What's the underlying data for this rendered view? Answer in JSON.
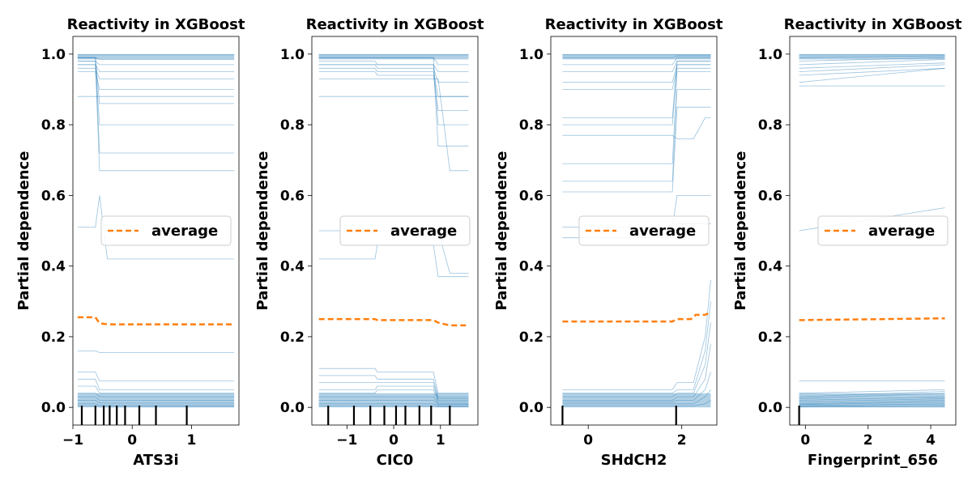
{
  "chart_data": [
    {
      "type": "line",
      "title": "Reactivity in XGBoost",
      "xlabel": "ATS3i",
      "ylabel": "Partial dependence",
      "xlim": [
        -1.0,
        1.8
      ],
      "ylim": [
        -0.05,
        1.05
      ],
      "xticks": [
        -1,
        0,
        1
      ],
      "xtick_labels": [
        "−1",
        "0",
        "1"
      ],
      "yticks": [
        0.0,
        0.2,
        0.4,
        0.6,
        0.8,
        1.0
      ],
      "ytick_labels": [
        "0.0",
        "0.2",
        "0.4",
        "0.6",
        "0.8",
        "1.0"
      ],
      "legend": {
        "label": "average",
        "position": "center-right"
      },
      "ice_x": [
        -0.92,
        -0.62,
        -0.55,
        -0.42,
        -0.3,
        -0.15,
        0.1,
        0.4,
        0.92,
        1.72
      ],
      "ice_lines": [
        [
          0.998,
          0.998,
          0.998,
          0.998,
          0.998,
          0.998,
          0.998,
          0.998,
          0.998,
          0.998
        ],
        [
          0.99,
          0.99,
          0.985,
          0.985,
          0.985,
          0.985,
          0.985,
          0.985,
          0.985,
          0.985
        ],
        [
          0.98,
          0.98,
          0.97,
          0.97,
          0.97,
          0.97,
          0.97,
          0.97,
          0.97,
          0.97
        ],
        [
          0.97,
          0.97,
          0.95,
          0.95,
          0.95,
          0.95,
          0.95,
          0.95,
          0.95,
          0.95
        ],
        [
          0.96,
          0.96,
          0.93,
          0.93,
          0.93,
          0.93,
          0.93,
          0.93,
          0.93,
          0.93
        ],
        [
          0.95,
          0.95,
          0.9,
          0.9,
          0.9,
          0.9,
          0.9,
          0.9,
          0.9,
          0.9
        ],
        [
          0.99,
          0.99,
          0.86,
          0.86,
          0.86,
          0.86,
          0.86,
          0.86,
          0.86,
          0.86
        ],
        [
          0.98,
          0.98,
          0.8,
          0.8,
          0.8,
          0.8,
          0.8,
          0.8,
          0.8,
          0.8
        ],
        [
          0.99,
          0.99,
          0.72,
          0.72,
          0.72,
          0.72,
          0.72,
          0.72,
          0.72,
          0.72
        ],
        [
          0.97,
          0.97,
          0.67,
          0.67,
          0.67,
          0.67,
          0.67,
          0.67,
          0.67,
          0.67
        ],
        [
          0.88,
          0.88,
          0.88,
          0.88,
          0.88,
          0.88,
          0.88,
          0.88,
          0.88,
          0.88
        ],
        [
          0.51,
          0.51,
          0.6,
          0.42,
          0.42,
          0.42,
          0.42,
          0.42,
          0.42,
          0.42
        ],
        [
          0.16,
          0.16,
          0.155,
          0.155,
          0.155,
          0.155,
          0.155,
          0.155,
          0.155,
          0.155
        ],
        [
          0.1,
          0.1,
          0.075,
          0.075,
          0.075,
          0.075,
          0.075,
          0.075,
          0.075,
          0.075
        ],
        [
          0.08,
          0.08,
          0.05,
          0.05,
          0.05,
          0.05,
          0.05,
          0.05,
          0.05,
          0.05
        ],
        [
          0.06,
          0.06,
          0.04,
          0.04,
          0.04,
          0.04,
          0.04,
          0.04,
          0.04,
          0.04
        ],
        [
          0.04,
          0.04,
          0.03,
          0.03,
          0.03,
          0.03,
          0.03,
          0.03,
          0.03,
          0.03
        ],
        [
          0.03,
          0.03,
          0.02,
          0.02,
          0.02,
          0.02,
          0.02,
          0.02,
          0.02,
          0.02
        ],
        [
          0.02,
          0.02,
          0.012,
          0.012,
          0.012,
          0.012,
          0.012,
          0.012,
          0.012,
          0.012
        ],
        [
          0.01,
          0.01,
          0.006,
          0.006,
          0.006,
          0.006,
          0.006,
          0.006,
          0.006,
          0.006
        ],
        [
          0.004,
          0.004,
          0.002,
          0.002,
          0.002,
          0.002,
          0.002,
          0.002,
          0.002,
          0.002
        ]
      ],
      "average": {
        "x": [
          -0.92,
          -0.62,
          -0.55,
          -0.42,
          -0.3,
          0.1,
          0.92,
          1.72
        ],
        "y": [
          0.255,
          0.255,
          0.238,
          0.235,
          0.235,
          0.235,
          0.235,
          0.235
        ]
      },
      "rug": [
        -0.85,
        -0.62,
        -0.48,
        -0.38,
        -0.26,
        -0.12,
        0.12,
        0.4,
        0.92
      ]
    },
    {
      "type": "line",
      "title": "Reactivity in XGBoost",
      "xlabel": "CIC0",
      "ylabel": "Partial dependence",
      "xlim": [
        -1.75,
        1.8
      ],
      "ylim": [
        -0.05,
        1.05
      ],
      "xticks": [
        -1,
        0,
        1
      ],
      "xtick_labels": [
        "−1",
        "0",
        "1"
      ],
      "yticks": [
        0.0,
        0.2,
        0.4,
        0.6,
        0.8,
        1.0
      ],
      "ytick_labels": [
        "0.0",
        "0.2",
        "0.4",
        "0.6",
        "0.8",
        "1.0"
      ],
      "legend": {
        "label": "average",
        "position": "center-right"
      },
      "ice_x": [
        -1.6,
        -0.4,
        -0.35,
        0.2,
        0.85,
        0.95,
        1.2,
        1.6
      ],
      "ice_lines": [
        [
          0.998,
          0.998,
          0.998,
          0.998,
          0.998,
          0.998,
          0.998,
          0.998
        ],
        [
          0.99,
          0.99,
          0.99,
          0.99,
          0.99,
          0.97,
          0.97,
          0.97
        ],
        [
          0.98,
          0.98,
          0.97,
          0.97,
          0.97,
          0.95,
          0.95,
          0.95
        ],
        [
          0.97,
          0.97,
          0.96,
          0.96,
          0.96,
          0.92,
          0.92,
          0.92
        ],
        [
          0.96,
          0.96,
          0.95,
          0.95,
          0.95,
          0.88,
          0.88,
          0.88
        ],
        [
          0.95,
          0.95,
          0.94,
          0.94,
          0.94,
          0.84,
          0.84,
          0.84
        ],
        [
          0.99,
          0.99,
          0.99,
          0.99,
          0.99,
          0.8,
          0.8,
          0.8
        ],
        [
          0.97,
          0.97,
          0.97,
          0.97,
          0.97,
          0.74,
          0.74,
          0.74
        ],
        [
          0.93,
          0.93,
          0.93,
          0.93,
          0.93,
          0.93,
          0.67,
          0.67
        ],
        [
          0.88,
          0.88,
          0.88,
          0.88,
          0.88,
          0.88,
          0.88,
          0.88
        ],
        [
          0.5,
          0.5,
          0.5,
          0.5,
          0.5,
          0.5,
          0.38,
          0.38
        ],
        [
          0.42,
          0.42,
          0.46,
          0.46,
          0.46,
          0.37,
          0.37,
          0.37
        ],
        [
          0.11,
          0.11,
          0.1,
          0.1,
          0.1,
          0.04,
          0.04,
          0.04
        ],
        [
          0.09,
          0.09,
          0.08,
          0.08,
          0.08,
          0.03,
          0.03,
          0.03
        ],
        [
          0.07,
          0.07,
          0.07,
          0.07,
          0.07,
          0.025,
          0.025,
          0.025
        ],
        [
          0.05,
          0.05,
          0.06,
          0.06,
          0.06,
          0.02,
          0.02,
          0.02
        ],
        [
          0.04,
          0.04,
          0.05,
          0.05,
          0.05,
          0.015,
          0.015,
          0.015
        ],
        [
          0.03,
          0.03,
          0.03,
          0.03,
          0.03,
          0.01,
          0.01,
          0.01
        ],
        [
          0.02,
          0.02,
          0.02,
          0.02,
          0.02,
          0.008,
          0.008,
          0.008
        ],
        [
          0.01,
          0.01,
          0.01,
          0.01,
          0.01,
          0.004,
          0.004,
          0.004
        ],
        [
          0.004,
          0.004,
          0.004,
          0.004,
          0.004,
          0.002,
          0.002,
          0.002
        ]
      ],
      "average": {
        "x": [
          -1.6,
          -0.4,
          -0.35,
          0.85,
          0.95,
          1.2,
          1.6
        ],
        "y": [
          0.25,
          0.25,
          0.247,
          0.247,
          0.24,
          0.232,
          0.232
        ]
      },
      "rug": [
        -1.4,
        -0.85,
        -0.5,
        -0.2,
        0.05,
        0.25,
        0.55,
        0.8,
        1.2
      ]
    },
    {
      "type": "line",
      "title": "Reactivity in XGBoost",
      "xlabel": "SHdCH2",
      "ylabel": "Partial dependence",
      "xlim": [
        -0.8,
        2.75
      ],
      "ylim": [
        -0.05,
        1.05
      ],
      "xticks": [
        0,
        2
      ],
      "xtick_labels": [
        "0",
        "2"
      ],
      "yticks": [
        0.0,
        0.2,
        0.4,
        0.6,
        0.8,
        1.0
      ],
      "ytick_labels": [
        "0.0",
        "0.2",
        "0.4",
        "0.6",
        "0.8",
        "1.0"
      ],
      "legend": {
        "label": "average",
        "position": "center-right"
      },
      "ice_x": [
        -0.55,
        1.8,
        1.9,
        2.2,
        2.25,
        2.5,
        2.62
      ],
      "ice_lines": [
        [
          0.998,
          0.998,
          0.998,
          0.998,
          0.998,
          0.998,
          0.998
        ],
        [
          0.99,
          0.99,
          0.995,
          0.995,
          0.995,
          0.995,
          0.995
        ],
        [
          0.97,
          0.97,
          0.99,
          0.99,
          0.99,
          0.99,
          0.99
        ],
        [
          0.95,
          0.95,
          0.98,
          0.98,
          0.98,
          0.98,
          0.98
        ],
        [
          0.92,
          0.92,
          0.97,
          0.97,
          0.97,
          0.97,
          0.97
        ],
        [
          0.9,
          0.9,
          0.96,
          0.96,
          0.96,
          0.96,
          0.96
        ],
        [
          0.82,
          0.82,
          0.98,
          0.98,
          0.98,
          0.98,
          0.98
        ],
        [
          0.8,
          0.8,
          0.97,
          0.97,
          0.97,
          0.97,
          0.97
        ],
        [
          0.77,
          0.77,
          0.76,
          0.76,
          0.76,
          0.82,
          0.82
        ],
        [
          0.69,
          0.69,
          0.95,
          0.95,
          0.95,
          0.95,
          0.95
        ],
        [
          0.64,
          0.64,
          0.9,
          0.9,
          0.9,
          0.9,
          0.9
        ],
        [
          0.61,
          0.61,
          0.85,
          0.85,
          0.85,
          0.85,
          0.85
        ],
        [
          0.51,
          0.51,
          0.6,
          0.6,
          0.6,
          0.6,
          0.6
        ],
        [
          0.48,
          0.48,
          0.52,
          0.52,
          0.52,
          0.52,
          0.52
        ],
        [
          0.05,
          0.05,
          0.07,
          0.07,
          0.07,
          0.2,
          0.36
        ],
        [
          0.04,
          0.04,
          0.05,
          0.05,
          0.05,
          0.16,
          0.3
        ],
        [
          0.03,
          0.03,
          0.04,
          0.04,
          0.04,
          0.12,
          0.24
        ],
        [
          0.02,
          0.02,
          0.03,
          0.03,
          0.03,
          0.08,
          0.18
        ],
        [
          0.015,
          0.015,
          0.02,
          0.02,
          0.02,
          0.05,
          0.1
        ],
        [
          0.01,
          0.01,
          0.01,
          0.01,
          0.01,
          0.03,
          0.05
        ],
        [
          0.004,
          0.004,
          0.004,
          0.004,
          0.004,
          0.01,
          0.02
        ]
      ],
      "average": {
        "x": [
          -0.55,
          1.8,
          1.9,
          2.2,
          2.3,
          2.5,
          2.62
        ],
        "y": [
          0.243,
          0.243,
          0.25,
          0.25,
          0.262,
          0.262,
          0.27
        ]
      },
      "rug": [
        -0.55,
        1.88
      ]
    },
    {
      "type": "line",
      "title": "Reactivity in XGBoost",
      "xlabel": "Fingerprint_656",
      "ylabel": "Partial dependence",
      "xlim": [
        -0.5,
        4.8
      ],
      "ylim": [
        -0.05,
        1.05
      ],
      "xticks": [
        0,
        2,
        4
      ],
      "xtick_labels": [
        "0",
        "2",
        "4"
      ],
      "yticks": [
        0.0,
        0.2,
        0.4,
        0.6,
        0.8,
        1.0
      ],
      "ytick_labels": [
        "0.0",
        "0.2",
        "0.4",
        "0.6",
        "0.8",
        "1.0"
      ],
      "legend": {
        "label": "average",
        "position": "center-right"
      },
      "ice_x": [
        -0.2,
        4.45
      ],
      "ice_lines": [
        [
          0.998,
          0.998
        ],
        [
          0.99,
          0.995
        ],
        [
          0.98,
          0.99
        ],
        [
          0.97,
          0.985
        ],
        [
          0.96,
          0.975
        ],
        [
          0.95,
          0.97
        ],
        [
          0.94,
          0.96
        ],
        [
          0.92,
          0.96
        ],
        [
          0.91,
          0.91
        ],
        [
          0.5,
          0.565
        ],
        [
          0.075,
          0.075
        ],
        [
          0.04,
          0.05
        ],
        [
          0.03,
          0.045
        ],
        [
          0.025,
          0.04
        ],
        [
          0.02,
          0.03
        ],
        [
          0.015,
          0.025
        ],
        [
          0.01,
          0.02
        ],
        [
          0.008,
          0.015
        ],
        [
          0.005,
          0.01
        ],
        [
          0.003,
          0.006
        ],
        [
          0.001,
          0.002
        ]
      ],
      "average": {
        "x": [
          -0.2,
          4.45
        ],
        "y": [
          0.247,
          0.252
        ]
      },
      "rug": [
        -0.2
      ]
    }
  ]
}
